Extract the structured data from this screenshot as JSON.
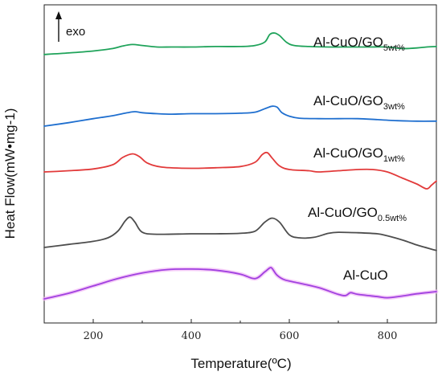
{
  "chart_data": {
    "type": "line",
    "xlabel": "Temperature(ºC)",
    "ylabel": "Heat Flow(mW•mg-1)",
    "xlim": [
      100,
      900
    ],
    "xticks": [
      200,
      400,
      600,
      800
    ],
    "y_ticks_shown": false,
    "grid": false,
    "legend": "inline labels beside curves",
    "annotation": {
      "arrow": "up",
      "text": "exo"
    },
    "series": [
      {
        "name": "Al-CuO/GO5wt%",
        "label_main": "Al-CuO/GO",
        "label_sub": "5wt%",
        "color": "#1fa35a",
        "x": [
          100,
          150,
          200,
          240,
          260,
          280,
          300,
          330,
          360,
          400,
          450,
          500,
          530,
          550,
          560,
          570,
          580,
          595,
          610,
          640,
          680,
          720,
          760,
          800,
          830,
          860,
          880,
          900
        ],
        "y": [
          1.0,
          1.3,
          1.7,
          2.2,
          2.7,
          3.0,
          2.8,
          2.5,
          2.5,
          2.5,
          2.6,
          2.6,
          2.8,
          3.5,
          5.0,
          5.3,
          4.8,
          3.4,
          2.8,
          2.6,
          2.5,
          2.5,
          2.5,
          2.5,
          2.2,
          2.3,
          2.5,
          2.6
        ]
      },
      {
        "name": "Al-CuO/GO3wt%",
        "label_main": "Al-CuO/GO",
        "label_sub": "3wt%",
        "color": "#1f6fcf",
        "x": [
          100,
          150,
          200,
          240,
          270,
          285,
          300,
          330,
          360,
          400,
          450,
          500,
          530,
          550,
          565,
          575,
          585,
          600,
          620,
          660,
          700,
          740,
          780,
          820,
          860,
          900
        ],
        "y": [
          0.0,
          0.7,
          1.5,
          2.1,
          2.7,
          2.9,
          2.7,
          2.5,
          2.4,
          2.5,
          2.5,
          2.6,
          2.8,
          3.5,
          4.0,
          3.8,
          2.7,
          2.0,
          1.6,
          1.5,
          1.5,
          1.5,
          1.3,
          1.1,
          1.0,
          1.0
        ]
      },
      {
        "name": "Al-CuO/GO1wt%",
        "label_main": "Al-CuO/GO",
        "label_sub": "1wt%",
        "color": "#e23a3a",
        "x": [
          100,
          150,
          200,
          240,
          260,
          280,
          295,
          310,
          340,
          400,
          450,
          500,
          530,
          545,
          555,
          565,
          580,
          600,
          640,
          660,
          700,
          740,
          770,
          800,
          830,
          860,
          880,
          890,
          900
        ],
        "y": [
          0.0,
          0.2,
          0.5,
          1.2,
          2.4,
          3.0,
          2.5,
          1.5,
          0.8,
          0.6,
          0.7,
          0.9,
          1.6,
          2.9,
          3.2,
          2.3,
          1.0,
          0.4,
          0.2,
          0.0,
          0.2,
          0.4,
          0.4,
          0.0,
          -1.0,
          -2.0,
          -2.8,
          -2.2,
          -1.5
        ]
      },
      {
        "name": "Al-CuO/GO0.5wt%",
        "label_main": "Al-CuO/GO",
        "label_sub": "0.5wt%",
        "color": "#4d4d4d",
        "x": [
          100,
          150,
          200,
          230,
          250,
          265,
          275,
          285,
          300,
          330,
          400,
          450,
          500,
          530,
          550,
          565,
          580,
          600,
          620,
          650,
          680,
          700,
          740,
          780,
          800,
          830,
          860,
          900
        ],
        "y": [
          0.0,
          0.6,
          1.2,
          1.9,
          3.2,
          5.2,
          6.0,
          5.0,
          3.0,
          2.6,
          2.7,
          2.7,
          2.8,
          3.2,
          5.0,
          5.8,
          5.0,
          2.5,
          1.9,
          2.0,
          2.8,
          3.0,
          2.9,
          2.7,
          2.3,
          1.5,
          0.5,
          -0.6
        ]
      },
      {
        "name": "Al-CuO",
        "label_main": "Al-CuO",
        "label_sub": "",
        "color": "#a040e0",
        "x": [
          100,
          150,
          200,
          250,
          300,
          350,
          400,
          450,
          500,
          530,
          550,
          560,
          565,
          575,
          590,
          620,
          660,
          700,
          715,
          725,
          740,
          780,
          800,
          830,
          860,
          900
        ],
        "y": [
          0.0,
          1.0,
          2.3,
          3.6,
          4.6,
          5.2,
          5.3,
          5.1,
          4.4,
          3.6,
          4.8,
          5.5,
          5.4,
          4.2,
          3.4,
          2.8,
          2.0,
          0.8,
          0.6,
          1.1,
          0.8,
          0.4,
          0.2,
          0.5,
          0.9,
          1.3
        ]
      }
    ]
  }
}
